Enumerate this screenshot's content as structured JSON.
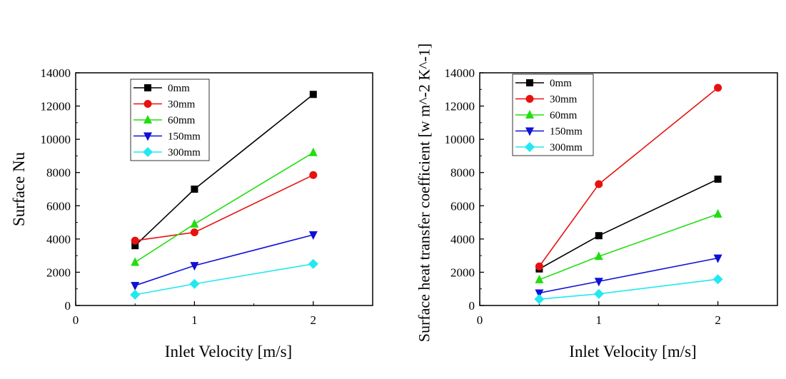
{
  "colors": {
    "0mm": "#000000",
    "30mm": "#e8110f",
    "60mm": "#22dd11",
    "150mm": "#1010d8",
    "300mm": "#22e8f0"
  },
  "chart_data": [
    {
      "type": "line",
      "xlabel": "Inlet Velocity [m/s]",
      "ylabel": "Surface Nu",
      "xlim": [
        0,
        2.5
      ],
      "ylim": [
        0,
        14000
      ],
      "xticks": [
        0,
        1,
        2
      ],
      "yticks": [
        0,
        2000,
        4000,
        6000,
        8000,
        10000,
        12000,
        14000
      ],
      "x": [
        0.5,
        1,
        2
      ],
      "legend_position": "top-left",
      "series": [
        {
          "name": "0mm",
          "marker": "square",
          "color": "#000000",
          "values": [
            3600,
            7000,
            12700
          ]
        },
        {
          "name": "30mm",
          "marker": "circle",
          "color": "#e8110f",
          "values": [
            3900,
            4400,
            7850
          ]
        },
        {
          "name": "60mm",
          "marker": "triangle-up",
          "color": "#22dd11",
          "values": [
            2600,
            4900,
            9200
          ]
        },
        {
          "name": "150mm",
          "marker": "triangle-down",
          "color": "#1010d8",
          "values": [
            1200,
            2400,
            4250
          ]
        },
        {
          "name": "300mm",
          "marker": "diamond",
          "color": "#22e8f0",
          "values": [
            650,
            1300,
            2500
          ]
        }
      ]
    },
    {
      "type": "line",
      "xlabel": "Inlet Velocity [m/s]",
      "ylabel": "Surface heat transfer coefficient [w m^-2 K^-1]",
      "xlim": [
        0,
        2.5
      ],
      "ylim": [
        0,
        14000
      ],
      "xticks": [
        0,
        1,
        2
      ],
      "yticks": [
        0,
        2000,
        4000,
        6000,
        8000,
        10000,
        12000,
        14000
      ],
      "x": [
        0.5,
        1,
        2
      ],
      "legend_position": "top-left",
      "series": [
        {
          "name": "0mm",
          "marker": "square",
          "color": "#000000",
          "values": [
            2200,
            4200,
            7600
          ]
        },
        {
          "name": "30mm",
          "marker": "circle",
          "color": "#e8110f",
          "values": [
            2350,
            7300,
            13100
          ]
        },
        {
          "name": "60mm",
          "marker": "triangle-up",
          "color": "#22dd11",
          "values": [
            1550,
            2950,
            5500
          ]
        },
        {
          "name": "150mm",
          "marker": "triangle-down",
          "color": "#1010d8",
          "values": [
            750,
            1450,
            2850
          ]
        },
        {
          "name": "300mm",
          "marker": "diamond",
          "color": "#22e8f0",
          "values": [
            380,
            700,
            1580
          ]
        }
      ]
    }
  ]
}
